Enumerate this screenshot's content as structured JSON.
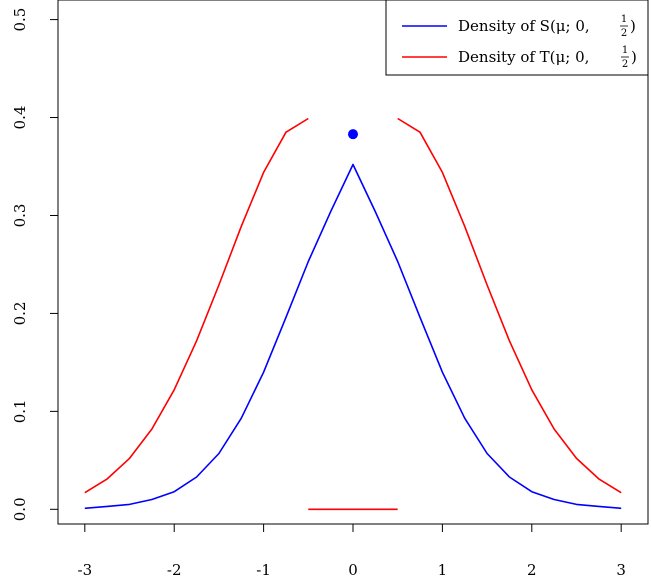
{
  "chart_data": {
    "type": "line",
    "title": "",
    "xlabel": "",
    "ylabel": "",
    "xlim": [
      -3.3,
      3.3
    ],
    "ylim": [
      -0.015,
      0.52
    ],
    "grid": false,
    "legend_position": "top-right",
    "x_ticks": [
      {
        "value": -3,
        "label": "-3"
      },
      {
        "value": -2,
        "label": "-2"
      },
      {
        "value": -1,
        "label": "-1"
      },
      {
        "value": 0,
        "label": "0"
      },
      {
        "value": 1,
        "label": "1"
      },
      {
        "value": 2,
        "label": "2"
      },
      {
        "value": 3,
        "label": "3"
      }
    ],
    "y_ticks": [
      {
        "value": 0.0,
        "label": "0.0"
      },
      {
        "value": 0.1,
        "label": "0.1"
      },
      {
        "value": 0.2,
        "label": "0.2"
      },
      {
        "value": 0.3,
        "label": "0.3"
      },
      {
        "value": 0.4,
        "label": "0.4"
      },
      {
        "value": 0.5,
        "label": "0.5"
      }
    ],
    "series": [
      {
        "name": "Density of S(μ;0,½)",
        "legend_main": "Density of S(μ; 0, ",
        "legend_num": "1",
        "legend_den": "2",
        "legend_close": ")",
        "color": "#0000ff",
        "x": [
          -3,
          -2.75,
          -2.5,
          -2.25,
          -2,
          -1.75,
          -1.5,
          -1.25,
          -1,
          -0.75,
          -0.5,
          -0.25,
          0,
          0.25,
          0.5,
          0.75,
          1,
          1.25,
          1.5,
          1.75,
          2,
          2.25,
          2.5,
          2.75,
          3
        ],
        "y": [
          0.001,
          0.003,
          0.005,
          0.01,
          0.018,
          0.033,
          0.057,
          0.093,
          0.14,
          0.196,
          0.253,
          0.304,
          0.352,
          0.304,
          0.253,
          0.196,
          0.14,
          0.093,
          0.057,
          0.033,
          0.018,
          0.01,
          0.005,
          0.003,
          0.001
        ],
        "point": {
          "x": 0,
          "y": 0.383
        }
      },
      {
        "name": "Density of T(μ;0,½)",
        "legend_main": "Density of T(μ; 0, ",
        "legend_num": "1",
        "legend_den": "2",
        "legend_close": ")",
        "color": "#ff0000",
        "segments": [
          {
            "x": [
              -3,
              -2.75,
              -2.5,
              -2.25,
              -2,
              -1.75,
              -1.5,
              -1.25,
              -1,
              -0.75,
              -0.5
            ],
            "y": [
              0.017,
              0.031,
              0.052,
              0.082,
              0.122,
              0.172,
              0.229,
              0.289,
              0.344,
              0.385,
              0.399
            ]
          },
          {
            "x": [
              0.5,
              0.75,
              1,
              1.25,
              1.5,
              1.75,
              2,
              2.25,
              2.5,
              2.75,
              3
            ],
            "y": [
              0.399,
              0.385,
              0.344,
              0.289,
              0.229,
              0.172,
              0.122,
              0.082,
              0.052,
              0.031,
              0.017
            ]
          },
          {
            "x": [
              -0.5,
              0.5
            ],
            "y": [
              0.0,
              0.0
            ]
          }
        ]
      }
    ]
  }
}
